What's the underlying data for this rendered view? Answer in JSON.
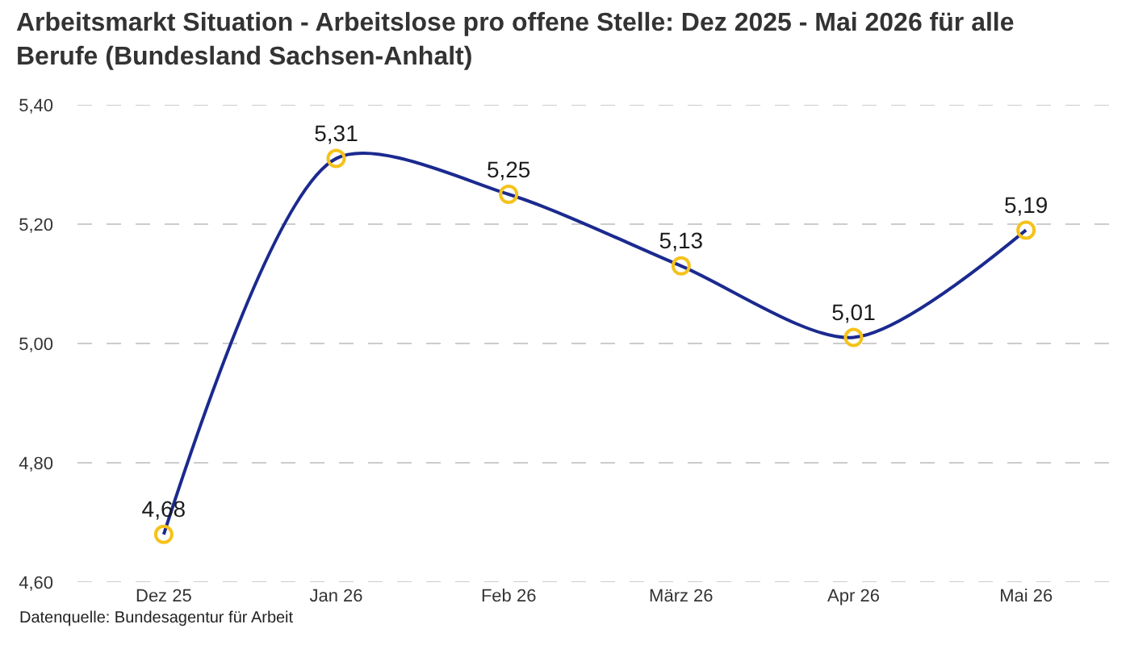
{
  "chart_data": {
    "type": "line",
    "title": "Arbeitsmarkt Situation - Arbeitslose pro offene Stelle: Dez 2025 - Mai 2026 für alle Berufe (Bundesland Sachsen-Anhalt)",
    "annotations": [
      "Datenquelle: Bundesagentur für Arbeit"
    ],
    "categories": [
      "Dez 25",
      "Jan 26",
      "Feb 26",
      "März 26",
      "Apr 26",
      "Mai 26"
    ],
    "series": [
      {
        "color": "#1b2a8f",
        "colors": [
          "#f5c21b",
          "#f5c21b",
          "#f5c21b",
          "#f5c21b",
          "#f5c21b",
          "#f5c21b"
        ],
        "values": [
          4.68,
          5.31,
          5.25,
          5.13,
          5.01,
          5.19
        ],
        "value_labels": [
          "4,68",
          "5,31",
          "5,25",
          "5,13",
          "5,01",
          "5,19"
        ]
      }
    ],
    "ylim": [
      4.6,
      5.4
    ],
    "yticks": [
      {
        "value": 4.6,
        "label": "4,60"
      },
      {
        "value": 4.8,
        "label": "4,80"
      },
      {
        "value": 5.0,
        "label": "5,00"
      },
      {
        "value": 5.2,
        "label": "5,20"
      },
      {
        "value": 5.4,
        "label": "5,40"
      }
    ],
    "grid": "y",
    "marker": "circle",
    "line_style": "solid"
  }
}
